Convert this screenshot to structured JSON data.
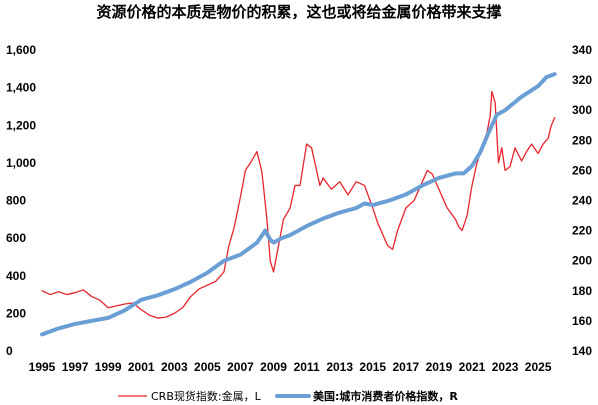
{
  "chart_data": {
    "type": "line",
    "title": "资源价格的本质是物价的积累，这也或将给金属价格带来支撑",
    "xlabel": "",
    "ylabel_left": "",
    "ylabel_right": "",
    "x_ticks": [
      "1995",
      "1997",
      "1999",
      "2001",
      "2003",
      "2005",
      "2007",
      "2009",
      "2011",
      "2013",
      "2015",
      "2017",
      "2019",
      "2021",
      "2023",
      "2025"
    ],
    "xlim": [
      1995,
      2026.2
    ],
    "ylim_left": [
      0,
      1600
    ],
    "ylim_right": [
      140,
      340
    ],
    "y_ticks_left": [
      "0",
      "200",
      "400",
      "600",
      "800",
      "1,000",
      "1,200",
      "1,400",
      "1,600"
    ],
    "y_ticks_right": [
      "140",
      "160",
      "180",
      "200",
      "220",
      "240",
      "260",
      "280",
      "300",
      "320",
      "340"
    ],
    "grid": false,
    "legend_position": "bottom",
    "series": [
      {
        "name": "CRB现货指数:金属，L",
        "axis": "left",
        "color": "#e8242c",
        "x": [
          1995.0,
          1995.5,
          1996.0,
          1996.5,
          1997.0,
          1997.5,
          1998.0,
          1998.5,
          1999.0,
          1999.5,
          2000.0,
          2000.5,
          2001.0,
          2001.5,
          2002.0,
          2002.5,
          2003.0,
          2003.5,
          2004.0,
          2004.5,
          2005.0,
          2005.5,
          2006.0,
          2006.3,
          2006.6,
          2007.0,
          2007.3,
          2007.6,
          2008.0,
          2008.3,
          2008.6,
          2008.8,
          2009.0,
          2009.3,
          2009.6,
          2010.0,
          2010.3,
          2010.6,
          2011.0,
          2011.3,
          2011.6,
          2011.8,
          2012.0,
          2012.5,
          2013.0,
          2013.5,
          2014.0,
          2014.5,
          2015.0,
          2015.3,
          2015.6,
          2015.9,
          2016.2,
          2016.5,
          2017.0,
          2017.5,
          2018.0,
          2018.3,
          2018.6,
          2019.0,
          2019.5,
          2020.0,
          2020.2,
          2020.4,
          2020.7,
          2021.0,
          2021.3,
          2021.6,
          2021.9,
          2022.1,
          2022.2,
          2022.4,
          2022.6,
          2022.8,
          2023.0,
          2023.3,
          2023.6,
          2024.0,
          2024.3,
          2024.6,
          2025.0,
          2025.3,
          2025.6,
          2025.8,
          2026.0
        ],
        "values": [
          320,
          300,
          315,
          300,
          310,
          325,
          290,
          270,
          230,
          240,
          250,
          255,
          220,
          190,
          175,
          180,
          200,
          230,
          290,
          330,
          350,
          370,
          420,
          560,
          650,
          820,
          960,
          1000,
          1060,
          950,
          700,
          480,
          420,
          560,
          700,
          760,
          880,
          880,
          1100,
          1080,
          960,
          880,
          920,
          860,
          900,
          830,
          900,
          880,
          760,
          680,
          620,
          560,
          540,
          640,
          760,
          800,
          900,
          960,
          940,
          860,
          760,
          700,
          660,
          640,
          720,
          880,
          1000,
          1080,
          1160,
          1250,
          1380,
          1320,
          1000,
          1080,
          960,
          980,
          1080,
          1010,
          1060,
          1100,
          1050,
          1100,
          1130,
          1200,
          1240
        ]
      },
      {
        "name": "美国:城市消费者价格指数，R",
        "axis": "right",
        "color": "#6a9fd6",
        "x": [
          1995.0,
          1996.0,
          1997.0,
          1998.0,
          1999.0,
          2000.0,
          2001.0,
          2002.0,
          2003.0,
          2004.0,
          2005.0,
          2006.0,
          2007.0,
          2008.0,
          2008.5,
          2008.8,
          2009.0,
          2009.5,
          2010.0,
          2011.0,
          2012.0,
          2013.0,
          2014.0,
          2014.5,
          2015.0,
          2016.0,
          2017.0,
          2018.0,
          2019.0,
          2020.0,
          2020.5,
          2021.0,
          2021.5,
          2022.0,
          2022.5,
          2023.0,
          2024.0,
          2025.0,
          2025.5,
          2026.0
        ],
        "values": [
          151,
          155,
          158,
          160,
          162,
          167,
          174,
          177,
          181,
          186,
          192,
          200,
          204,
          212,
          220,
          214,
          212,
          215,
          217,
          223,
          228,
          232,
          235,
          238,
          237,
          240,
          244,
          250,
          255,
          258,
          258,
          263,
          272,
          285,
          297,
          300,
          309,
          316,
          322,
          324
        ]
      }
    ]
  }
}
